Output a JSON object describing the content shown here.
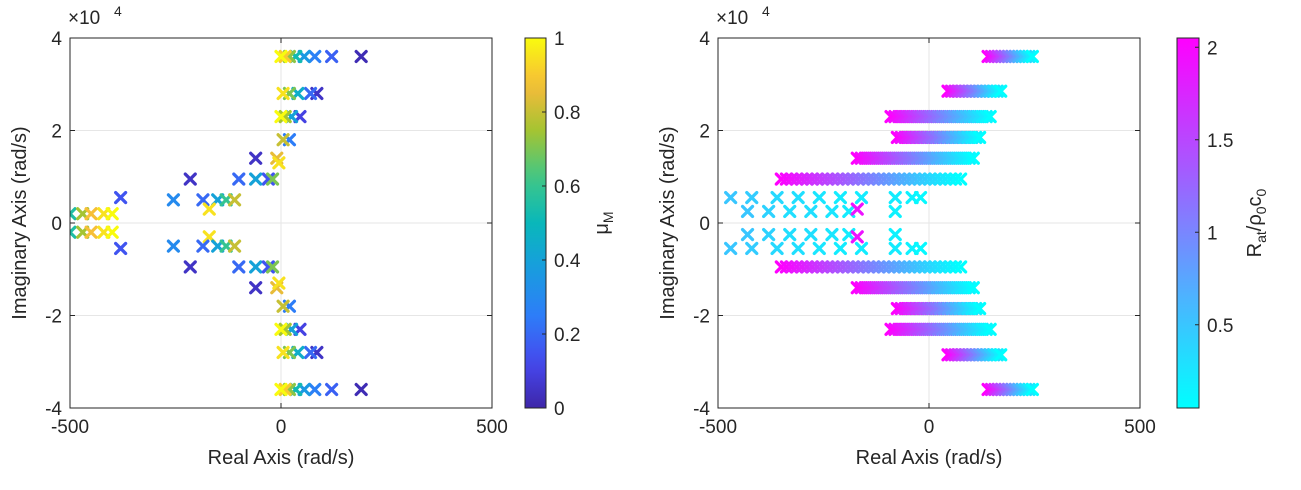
{
  "chart_data": [
    {
      "type": "scatter",
      "marker": "x",
      "xlabel": "Real Axis (rad/s)",
      "ylabel": "Imaginary Axis (rad/s)",
      "xlim": [
        -500,
        500
      ],
      "ylim": [
        -40000,
        40000
      ],
      "y_exponent_label": "×10",
      "y_exponent_power": "4",
      "x_ticks": [
        -500,
        0,
        500
      ],
      "x_tick_labels": [
        "-500",
        "0",
        "500"
      ],
      "y_ticks": [
        -40000,
        -20000,
        0,
        20000,
        40000
      ],
      "y_tick_labels": [
        "-4",
        "-2",
        "0",
        "2",
        "4"
      ],
      "grid": true,
      "colormap": "parula",
      "colorbar": {
        "label_main": "μ",
        "label_sub": "M",
        "range": [
          0,
          1
        ],
        "ticks": [
          0,
          0.2,
          0.4,
          0.6,
          0.8,
          1
        ],
        "tick_labels": [
          "0",
          "0.2",
          "0.4",
          "0.6",
          "0.8",
          "1"
        ]
      },
      "points": [
        {
          "x": 190,
          "y": 36000,
          "c": 0.02
        },
        {
          "x": 120,
          "y": 36000,
          "c": 0.18
        },
        {
          "x": 80,
          "y": 36000,
          "c": 0.26
        },
        {
          "x": 55,
          "y": 36000,
          "c": 0.36
        },
        {
          "x": 35,
          "y": 36000,
          "c": 0.52
        },
        {
          "x": 20,
          "y": 36000,
          "c": 0.72
        },
        {
          "x": 10,
          "y": 36000,
          "c": 0.9
        },
        {
          "x": 0,
          "y": 36000,
          "c": 1.0
        },
        {
          "x": 85,
          "y": 28000,
          "c": 0.05
        },
        {
          "x": 70,
          "y": 28000,
          "c": 0.2
        },
        {
          "x": 40,
          "y": 28000,
          "c": 0.45
        },
        {
          "x": 20,
          "y": 28000,
          "c": 0.7
        },
        {
          "x": 5,
          "y": 28000,
          "c": 0.95
        },
        {
          "x": 45,
          "y": 23000,
          "c": 0.1
        },
        {
          "x": 25,
          "y": 23000,
          "c": 0.4
        },
        {
          "x": 10,
          "y": 23000,
          "c": 0.75
        },
        {
          "x": 0,
          "y": 23000,
          "c": 1.0
        },
        {
          "x": 20,
          "y": 18000,
          "c": 0.25
        },
        {
          "x": 5,
          "y": 18000,
          "c": 0.8
        },
        {
          "x": -60,
          "y": 14000,
          "c": 0.05
        },
        {
          "x": -10,
          "y": 14000,
          "c": 0.85
        },
        {
          "x": -5,
          "y": 13000,
          "c": 0.95
        },
        {
          "x": -30,
          "y": 9500,
          "c": 0.15
        },
        {
          "x": -60,
          "y": 9500,
          "c": 0.4
        },
        {
          "x": -20,
          "y": 9500,
          "c": 0.7
        },
        {
          "x": -215,
          "y": 9500,
          "c": 0.05
        },
        {
          "x": -100,
          "y": 9500,
          "c": 0.2
        },
        {
          "x": -185,
          "y": 5000,
          "c": 0.2
        },
        {
          "x": -150,
          "y": 5000,
          "c": 0.4
        },
        {
          "x": -130,
          "y": 5000,
          "c": 0.6
        },
        {
          "x": -110,
          "y": 5000,
          "c": 0.8
        },
        {
          "x": -255,
          "y": 5000,
          "c": 0.3
        },
        {
          "x": -170,
          "y": 3000,
          "c": 0.95
        },
        {
          "x": -380,
          "y": 5500,
          "c": 0.15
        },
        {
          "x": -500,
          "y": 2000,
          "c": 0.55
        },
        {
          "x": -470,
          "y": 2000,
          "c": 0.75
        },
        {
          "x": -450,
          "y": 2000,
          "c": 0.88
        },
        {
          "x": -420,
          "y": 2000,
          "c": 0.95
        },
        {
          "x": -400,
          "y": 2000,
          "c": 1.0
        },
        {
          "x": -500,
          "y": -2000,
          "c": 0.55
        },
        {
          "x": -470,
          "y": -2000,
          "c": 0.75
        },
        {
          "x": -450,
          "y": -2000,
          "c": 0.88
        },
        {
          "x": -420,
          "y": -2000,
          "c": 0.95
        },
        {
          "x": -400,
          "y": -2000,
          "c": 1.0
        },
        {
          "x": -380,
          "y": -5500,
          "c": 0.15
        },
        {
          "x": -255,
          "y": -5000,
          "c": 0.3
        },
        {
          "x": -170,
          "y": -3000,
          "c": 0.95
        },
        {
          "x": -185,
          "y": -5000,
          "c": 0.2
        },
        {
          "x": -150,
          "y": -5000,
          "c": 0.4
        },
        {
          "x": -130,
          "y": -5000,
          "c": 0.6
        },
        {
          "x": -110,
          "y": -5000,
          "c": 0.8
        },
        {
          "x": -215,
          "y": -9500,
          "c": 0.05
        },
        {
          "x": -100,
          "y": -9500,
          "c": 0.2
        },
        {
          "x": -60,
          "y": -9500,
          "c": 0.4
        },
        {
          "x": -30,
          "y": -9500,
          "c": 0.15
        },
        {
          "x": -20,
          "y": -9500,
          "c": 0.7
        },
        {
          "x": -60,
          "y": -14000,
          "c": 0.05
        },
        {
          "x": -10,
          "y": -14000,
          "c": 0.85
        },
        {
          "x": -5,
          "y": -13000,
          "c": 0.95
        },
        {
          "x": 20,
          "y": -18000,
          "c": 0.25
        },
        {
          "x": 5,
          "y": -18000,
          "c": 0.8
        },
        {
          "x": 45,
          "y": -23000,
          "c": 0.1
        },
        {
          "x": 25,
          "y": -23000,
          "c": 0.4
        },
        {
          "x": 10,
          "y": -23000,
          "c": 0.75
        },
        {
          "x": 0,
          "y": -23000,
          "c": 1.0
        },
        {
          "x": 85,
          "y": -28000,
          "c": 0.05
        },
        {
          "x": 70,
          "y": -28000,
          "c": 0.2
        },
        {
          "x": 40,
          "y": -28000,
          "c": 0.45
        },
        {
          "x": 20,
          "y": -28000,
          "c": 0.7
        },
        {
          "x": 5,
          "y": -28000,
          "c": 0.95
        },
        {
          "x": 190,
          "y": -36000,
          "c": 0.02
        },
        {
          "x": 120,
          "y": -36000,
          "c": 0.18
        },
        {
          "x": 80,
          "y": -36000,
          "c": 0.26
        },
        {
          "x": 55,
          "y": -36000,
          "c": 0.36
        },
        {
          "x": 35,
          "y": -36000,
          "c": 0.52
        },
        {
          "x": 20,
          "y": -36000,
          "c": 0.72
        },
        {
          "x": 10,
          "y": -36000,
          "c": 0.9
        },
        {
          "x": 0,
          "y": -36000,
          "c": 1.0
        }
      ]
    },
    {
      "type": "scatter",
      "marker": "x",
      "xlabel": "Real Axis (rad/s)",
      "ylabel": "Imaginary Axis (rad/s)",
      "xlim": [
        -500,
        500
      ],
      "ylim": [
        -40000,
        40000
      ],
      "y_exponent_label": "×10",
      "y_exponent_power": "4",
      "x_ticks": [
        -500,
        0,
        500
      ],
      "x_tick_labels": [
        "-500",
        "0",
        "500"
      ],
      "y_ticks": [
        -40000,
        -20000,
        0,
        20000,
        40000
      ],
      "y_tick_labels": [
        "-4",
        "-2",
        "0",
        "2",
        "4"
      ],
      "grid": true,
      "colormap": "cool",
      "colorbar": {
        "label_main": "R",
        "label_sub": "at",
        "label_mid": "/ρ",
        "label_sub2": "0",
        "label_end": "c",
        "label_sub3": "0",
        "range": [
          0.05,
          2.05
        ],
        "ticks": [
          0.5,
          1,
          1.5,
          2
        ],
        "tick_labels": [
          "0.5",
          "1",
          "1.5",
          "2"
        ]
      },
      "rows": [
        {
          "y": 36000,
          "x_from": 140,
          "x_to": 245,
          "c_from": 2.05,
          "c_to": 0.05,
          "n": 14
        },
        {
          "y": 28500,
          "x_from": 45,
          "x_to": 170,
          "c_from": 2.05,
          "c_to": 0.05,
          "n": 16
        },
        {
          "y": 23000,
          "x_from": -90,
          "x_to": 145,
          "c_from": 2.05,
          "c_to": 0.05,
          "n": 26
        },
        {
          "y": 18500,
          "x_from": -75,
          "x_to": 120,
          "c_from": 2.05,
          "c_to": 0.05,
          "n": 22
        },
        {
          "y": 14000,
          "x_from": -170,
          "x_to": 105,
          "c_from": 2.05,
          "c_to": 0.05,
          "n": 30
        },
        {
          "y": 9500,
          "x_from": -350,
          "x_to": 75,
          "c_from": 2.05,
          "c_to": 0.05,
          "n": 36
        },
        {
          "y": -9500,
          "x_from": -350,
          "x_to": 75,
          "c_from": 2.05,
          "c_to": 0.05,
          "n": 36
        },
        {
          "y": -14000,
          "x_from": -170,
          "x_to": 105,
          "c_from": 2.05,
          "c_to": 0.05,
          "n": 30
        },
        {
          "y": -18500,
          "x_from": -75,
          "x_to": 120,
          "c_from": 2.05,
          "c_to": 0.05,
          "n": 22
        },
        {
          "y": -23000,
          "x_from": -90,
          "x_to": 145,
          "c_from": 2.05,
          "c_to": 0.05,
          "n": 26
        },
        {
          "y": -28500,
          "x_from": 45,
          "x_to": 170,
          "c_from": 2.05,
          "c_to": 0.05,
          "n": 16
        },
        {
          "y": -36000,
          "x_from": 140,
          "x_to": 245,
          "c_from": 2.05,
          "c_to": 0.05,
          "n": 14
        }
      ],
      "points": [
        {
          "x": -470,
          "y": 5500,
          "c": 0.5
        },
        {
          "x": -420,
          "y": 5500,
          "c": 0.45
        },
        {
          "x": -360,
          "y": 5500,
          "c": 0.35
        },
        {
          "x": -310,
          "y": 5500,
          "c": 0.3
        },
        {
          "x": -260,
          "y": 5500,
          "c": 0.25
        },
        {
          "x": -210,
          "y": 5500,
          "c": 0.2
        },
        {
          "x": -160,
          "y": 5500,
          "c": 0.2
        },
        {
          "x": -80,
          "y": 5500,
          "c": 0.2
        },
        {
          "x": -40,
          "y": 5500,
          "c": 0.15
        },
        {
          "x": -20,
          "y": 5500,
          "c": 0.1
        },
        {
          "x": -430,
          "y": 2500,
          "c": 0.5
        },
        {
          "x": -380,
          "y": 2500,
          "c": 0.4
        },
        {
          "x": -330,
          "y": 2500,
          "c": 0.3
        },
        {
          "x": -280,
          "y": 2500,
          "c": 0.3
        },
        {
          "x": -230,
          "y": 2500,
          "c": 0.25
        },
        {
          "x": -190,
          "y": 2500,
          "c": 0.2
        },
        {
          "x": -170,
          "y": 3000,
          "c": 1.9
        },
        {
          "x": -80,
          "y": 2500,
          "c": 0.15
        },
        {
          "x": -470,
          "y": -5500,
          "c": 0.5
        },
        {
          "x": -420,
          "y": -5500,
          "c": 0.45
        },
        {
          "x": -360,
          "y": -5500,
          "c": 0.35
        },
        {
          "x": -310,
          "y": -5500,
          "c": 0.3
        },
        {
          "x": -260,
          "y": -5500,
          "c": 0.25
        },
        {
          "x": -210,
          "y": -5500,
          "c": 0.2
        },
        {
          "x": -160,
          "y": -5500,
          "c": 0.2
        },
        {
          "x": -80,
          "y": -5500,
          "c": 0.2
        },
        {
          "x": -40,
          "y": -5500,
          "c": 0.15
        },
        {
          "x": -20,
          "y": -5500,
          "c": 0.1
        },
        {
          "x": -430,
          "y": -2500,
          "c": 0.5
        },
        {
          "x": -380,
          "y": -2500,
          "c": 0.4
        },
        {
          "x": -330,
          "y": -2500,
          "c": 0.3
        },
        {
          "x": -280,
          "y": -2500,
          "c": 0.3
        },
        {
          "x": -230,
          "y": -2500,
          "c": 0.25
        },
        {
          "x": -190,
          "y": -2500,
          "c": 0.2
        },
        {
          "x": -170,
          "y": -3000,
          "c": 1.9
        },
        {
          "x": -80,
          "y": -2500,
          "c": 0.15
        }
      ]
    }
  ]
}
